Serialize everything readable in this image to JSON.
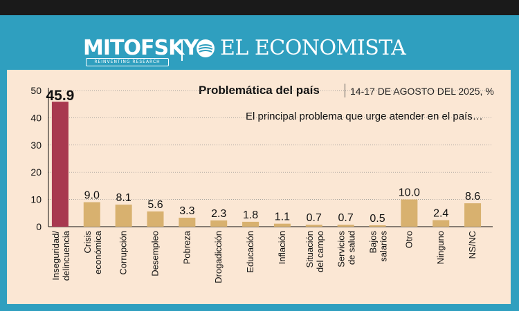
{
  "header": {
    "brand1": "MITOFSKY",
    "brand1_tagline": "REINVENTING RESEARCH",
    "brand2": "EL ECONOMISTA"
  },
  "colors": {
    "highlight": "#a8384f",
    "bar": "#d8b16f",
    "background": "#fbe7d4",
    "frame": "#2f9fbf"
  },
  "chart_data": {
    "type": "bar",
    "title": "Problemática del país",
    "subtitle": "14-17 DE AGOSTO DEL 2025, %",
    "question": "El principal problema que urge atender en el país…",
    "categories": [
      "Inseguridad/ delincuencia",
      "Crisis económica",
      "Corrupción",
      "Desempleo",
      "Pobreza",
      "Drogadicción",
      "Educación",
      "Inflación",
      "Situación del campo",
      "Servicios de salud",
      "Bajos salarios",
      "Otro",
      "Ninguno",
      "NS/NC"
    ],
    "values": [
      45.9,
      9.0,
      8.1,
      5.6,
      3.3,
      2.3,
      1.8,
      1.1,
      0.7,
      0.7,
      0.5,
      10.0,
      2.4,
      8.6
    ],
    "value_labels": [
      "45.9",
      "9.0",
      "8.1",
      "5.6",
      "3.3",
      "2.3",
      "1.8",
      "1.1",
      "0.7",
      "0.7",
      "0.5",
      "10.0",
      "2.4",
      "8.6"
    ],
    "highlight_index": 0,
    "yticks": [
      "0",
      "10",
      "20",
      "30",
      "40",
      "50"
    ],
    "ylim": [
      0,
      50
    ],
    "grid": true
  }
}
